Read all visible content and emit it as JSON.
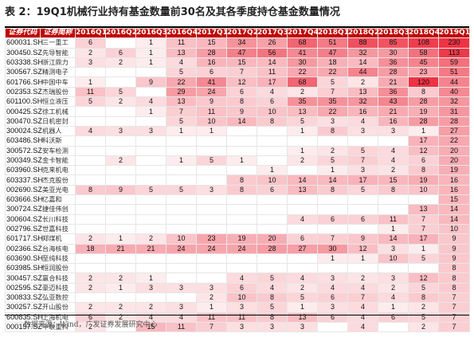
{
  "title": "表 2：19Q1机械行业持有基金数量前30名及其各季度持仓基金数量情况",
  "source": "数据来源：Wind，广发证券发展研究中心",
  "colors": {
    "header_bg": "#c00000",
    "heat_max": "#ee3344"
  },
  "table": {
    "headers": [
      "证券代码",
      "证券简称",
      "2016Q1",
      "2016Q2",
      "2016Q3",
      "2016Q4",
      "2017Q1",
      "2017Q2",
      "2017Q3",
      "2017Q4",
      "2018Q1",
      "2018Q2",
      "2018Q3",
      "2018Q4",
      "2019Q1"
    ],
    "rows": [
      {
        "code": "600031.SH",
        "name": "三一重工",
        "values": [
          "6",
          "",
          "1",
          "11",
          "15",
          "34",
          "26",
          "68",
          "51",
          "88",
          "85",
          "108",
          "230"
        ]
      },
      {
        "code": "300450.SZ",
        "name": "先导智能",
        "values": [
          "2",
          "6",
          "1",
          "13",
          "28",
          "47",
          "56",
          "41",
          "47",
          "32",
          "30",
          "58",
          "113"
        ]
      },
      {
        "code": "603338.SH",
        "name": "浙江鼎力",
        "values": [
          "3",
          "2",
          "1",
          "4",
          "16",
          "15",
          "14",
          "30",
          "18",
          "14",
          "36",
          "45",
          "59"
        ]
      },
      {
        "code": "300567.SZ",
        "name": "精测电子",
        "values": [
          "",
          "",
          "",
          "5",
          "6",
          "7",
          "11",
          "22",
          "22",
          "44",
          "28",
          "23",
          "51"
        ]
      },
      {
        "code": "601766.SH",
        "name": "中国中车",
        "values": [
          "1",
          "",
          "9",
          "22",
          "41",
          "12",
          "17",
          "68",
          "5",
          "2",
          "21",
          "120",
          "44"
        ]
      },
      {
        "code": "002353.SZ",
        "name": "杰瑞股份",
        "values": [
          "11",
          "5",
          "",
          "29",
          "24",
          "6",
          "4",
          "2",
          "7",
          "13",
          "36",
          "8",
          "40"
        ]
      },
      {
        "code": "601100.SH",
        "name": "恒立液压",
        "values": [
          "5",
          "2",
          "4",
          "13",
          "9",
          "8",
          "6",
          "35",
          "35",
          "32",
          "43",
          "28",
          "32"
        ]
      },
      {
        "code": "000425.SZ",
        "name": "徐工机械",
        "values": [
          "",
          "",
          "1",
          "7",
          "11",
          "9",
          "10",
          "13",
          "22",
          "16",
          "21",
          "19",
          "31"
        ]
      },
      {
        "code": "300470.SZ",
        "name": "日机密封",
        "values": [
          "",
          "",
          "",
          "5",
          "10",
          "14",
          "8",
          "5",
          "3",
          "4",
          "16",
          "28",
          "28"
        ]
      },
      {
        "code": "300024.SZ",
        "name": "机器人",
        "values": [
          "4",
          "3",
          "3",
          "1",
          "1",
          "",
          "",
          "1",
          "8",
          "3",
          "3",
          "1",
          "27"
        ]
      },
      {
        "code": "603486.SH",
        "name": "科沃斯",
        "values": [
          "",
          "",
          "",
          "",
          "",
          "",
          "",
          "",
          "",
          "",
          "",
          "17",
          "22"
        ]
      },
      {
        "code": "300572.SZ",
        "name": "安车检测",
        "values": [
          "",
          "",
          "",
          "",
          "",
          "",
          "",
          "1",
          "2",
          "5",
          "4",
          "12",
          "20"
        ]
      },
      {
        "code": "300349.SZ",
        "name": "金卡智能",
        "values": [
          "",
          "2",
          "",
          "1",
          "5",
          "1",
          "",
          "2",
          "5",
          "7",
          "4",
          "6",
          "20"
        ]
      },
      {
        "code": "603960.SH",
        "name": "克来机电",
        "values": [
          "",
          "",
          "",
          "",
          "",
          "",
          "1",
          "",
          "1",
          "3",
          "2",
          "8",
          "19"
        ]
      },
      {
        "code": "603337.SH",
        "name": "杰克股份",
        "values": [
          "",
          "",
          "",
          "",
          "",
          "8",
          "10",
          "14",
          "14",
          "17",
          "15",
          "19",
          "16"
        ]
      },
      {
        "code": "002690.SZ",
        "name": "美亚光电",
        "values": [
          "8",
          "9",
          "5",
          "5",
          "3",
          "8",
          "6",
          "13",
          "8",
          "5",
          "8",
          "10",
          "16"
        ]
      },
      {
        "code": "603666.SH",
        "name": "亿嘉和",
        "values": [
          "",
          "",
          "",
          "",
          "",
          "",
          "",
          "",
          "",
          "",
          "",
          "",
          "15"
        ]
      },
      {
        "code": "300724.SZ",
        "name": "捷佳伟创",
        "values": [
          "",
          "",
          "",
          "",
          "",
          "",
          "",
          "",
          "",
          "",
          "",
          "13",
          "14"
        ]
      },
      {
        "code": "300604.SZ",
        "name": "长川科技",
        "values": [
          "",
          "",
          "",
          "",
          "",
          "",
          "",
          "4",
          "6",
          "6",
          "11",
          "7",
          "14"
        ]
      },
      {
        "code": "002796.SZ",
        "name": "世嘉科技",
        "values": [
          "",
          "",
          "",
          "",
          "",
          "",
          "",
          "",
          "",
          "",
          "1",
          "7",
          "10"
        ]
      },
      {
        "code": "601717.SH",
        "name": "郑煤机",
        "values": [
          "2",
          "1",
          "2",
          "10",
          "23",
          "19",
          "20",
          "6",
          "7",
          "9",
          "14",
          "17",
          "9"
        ]
      },
      {
        "code": "002366.SZ",
        "name": "台海核电",
        "values": [
          "18",
          "21",
          "21",
          "24",
          "24",
          "24",
          "28",
          "27",
          "30",
          "12",
          "3",
          "1",
          "9"
        ]
      },
      {
        "code": "603690.SH",
        "name": "至纯科技",
        "values": [
          "",
          "",
          "",
          "",
          "",
          "",
          "",
          "",
          "1",
          "1",
          "10",
          "5",
          "9"
        ]
      },
      {
        "code": "603985.SH",
        "name": "恒润股份",
        "values": [
          "",
          "",
          "",
          "",
          "",
          "",
          "",
          "",
          "",
          "",
          "",
          "",
          "8"
        ]
      },
      {
        "code": "300457.SZ",
        "name": "赢合科技",
        "values": [
          "2",
          "2",
          "1",
          "",
          "",
          "4",
          "5",
          "4",
          "3",
          "2",
          "3",
          "12",
          "8"
        ]
      },
      {
        "code": "002595.SZ",
        "name": "豪迈科技",
        "values": [
          "2",
          "1",
          "3",
          "3",
          "3",
          "6",
          "4",
          "2",
          "4",
          "4",
          "2",
          "5",
          "8"
        ]
      },
      {
        "code": "300833.SZ",
        "name": "弘亚数控",
        "values": [
          "",
          "",
          "",
          "",
          "2",
          "10",
          "8",
          "5",
          "6",
          "7",
          "4",
          "8",
          "7"
        ]
      },
      {
        "code": "300257.SZ",
        "name": "开山股份",
        "values": [
          "2",
          "2",
          "2",
          "3",
          "1",
          "3",
          "5",
          "1",
          "3",
          "4",
          "1",
          "2",
          "7"
        ]
      },
      {
        "code": "600835.SH",
        "name": "上海机电",
        "values": [
          "6",
          "2",
          "4",
          "4",
          "11",
          "11",
          "8",
          "13",
          "6",
          "4",
          "6",
          "5",
          "7"
        ]
      },
      {
        "code": "000157.SZ",
        "name": "中联重科",
        "values": [
          "2",
          "",
          "15",
          "11",
          "7",
          "3",
          "3",
          "3",
          "",
          "4",
          "",
          "2",
          "7"
        ]
      }
    ]
  }
}
